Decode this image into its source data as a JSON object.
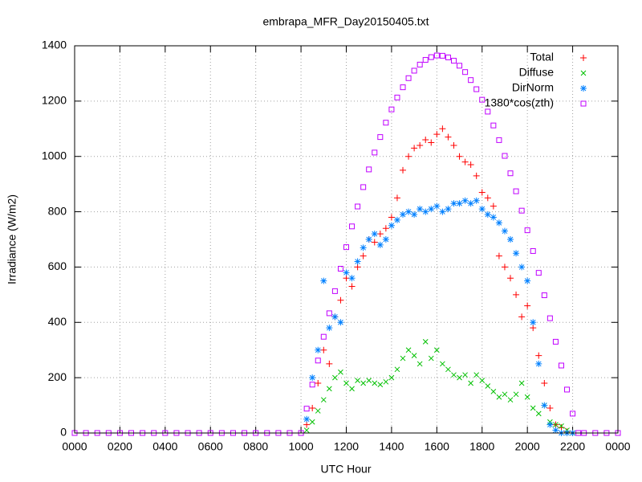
{
  "chart_data": {
    "type": "scatter",
    "title": "embrapa_MFR_Day20150405.txt",
    "x_label": "UTC Hour",
    "y_label": "Irradiance (W/m2)",
    "xlim": [
      0,
      24
    ],
    "ylim": [
      0,
      1400
    ],
    "xticks": [
      {
        "value": 0,
        "label": "0000"
      },
      {
        "value": 2,
        "label": "0200"
      },
      {
        "value": 4,
        "label": "0400"
      },
      {
        "value": 6,
        "label": "0600"
      },
      {
        "value": 8,
        "label": "0800"
      },
      {
        "value": 10,
        "label": "1000"
      },
      {
        "value": 12,
        "label": "1200"
      },
      {
        "value": 14,
        "label": "1400"
      },
      {
        "value": 16,
        "label": "1600"
      },
      {
        "value": 18,
        "label": "1800"
      },
      {
        "value": 20,
        "label": "2000"
      },
      {
        "value": 22,
        "label": "2200"
      },
      {
        "value": 24,
        "label": "0000"
      }
    ],
    "yticks": [
      0,
      200,
      400,
      600,
      800,
      1000,
      1200,
      1400
    ],
    "grid": true,
    "legend": "top-right",
    "series": [
      {
        "name": "Total",
        "color": "#ff0000",
        "marker": "plus",
        "x": [
          10.25,
          10.5,
          10.75,
          11,
          11.25,
          11.5,
          11.75,
          12,
          12.25,
          12.5,
          12.75,
          13,
          13.25,
          13.5,
          13.75,
          14,
          14.25,
          14.5,
          14.75,
          15,
          15.25,
          15.5,
          15.75,
          16,
          16.25,
          16.5,
          16.75,
          17,
          17.25,
          17.5,
          17.75,
          18,
          18.25,
          18.5,
          18.75,
          19,
          19.25,
          19.5,
          19.75,
          20,
          20.25,
          20.5,
          20.75,
          21,
          21.25,
          21.5,
          21.75,
          22
        ],
        "values": [
          30,
          90,
          180,
          300,
          250,
          420,
          480,
          560,
          530,
          600,
          640,
          700,
          690,
          720,
          740,
          780,
          850,
          950,
          1000,
          1030,
          1040,
          1060,
          1050,
          1080,
          1100,
          1070,
          1040,
          1000,
          980,
          970,
          930,
          870,
          850,
          820,
          640,
          600,
          560,
          500,
          420,
          460,
          380,
          280,
          180,
          90,
          30,
          20,
          5,
          0
        ]
      },
      {
        "name": "Diffuse",
        "color": "#00c000",
        "marker": "cross",
        "x": [
          10.25,
          10.5,
          10.75,
          11,
          11.25,
          11.5,
          11.75,
          12,
          12.25,
          12.5,
          12.75,
          13,
          13.25,
          13.5,
          13.75,
          14,
          14.25,
          14.5,
          14.75,
          15,
          15.25,
          15.5,
          15.75,
          16,
          16.25,
          16.5,
          16.75,
          17,
          17.25,
          17.5,
          17.75,
          18,
          18.25,
          18.5,
          18.75,
          19,
          19.25,
          19.5,
          19.75,
          20,
          20.25,
          20.5,
          20.75,
          21,
          21.25,
          21.5,
          21.75,
          22
        ],
        "values": [
          10,
          40,
          80,
          120,
          160,
          200,
          220,
          180,
          160,
          190,
          180,
          190,
          180,
          175,
          185,
          200,
          230,
          270,
          300,
          280,
          250,
          330,
          270,
          300,
          250,
          230,
          210,
          200,
          210,
          180,
          210,
          190,
          170,
          150,
          130,
          140,
          120,
          140,
          180,
          130,
          90,
          70,
          100,
          40,
          30,
          25,
          10,
          0
        ]
      },
      {
        "name": "DirNorm",
        "color": "#0080ff",
        "marker": "star",
        "x": [
          10.25,
          10.5,
          10.75,
          11,
          11.25,
          11.5,
          11.75,
          12,
          12.25,
          12.5,
          12.75,
          13,
          13.25,
          13.5,
          13.75,
          14,
          14.25,
          14.5,
          14.75,
          15,
          15.25,
          15.5,
          15.75,
          16,
          16.25,
          16.5,
          16.75,
          17,
          17.25,
          17.5,
          17.75,
          18,
          18.25,
          18.5,
          18.75,
          19,
          19.25,
          19.5,
          19.75,
          20,
          20.25,
          20.5,
          20.75,
          21,
          21.25,
          21.5,
          21.75,
          22
        ],
        "values": [
          50,
          200,
          300,
          550,
          380,
          420,
          400,
          580,
          560,
          620,
          670,
          700,
          720,
          680,
          700,
          750,
          770,
          790,
          800,
          790,
          810,
          800,
          810,
          820,
          800,
          810,
          830,
          830,
          840,
          830,
          840,
          810,
          790,
          780,
          760,
          730,
          700,
          650,
          600,
          550,
          400,
          250,
          100,
          30,
          10,
          0,
          0,
          0
        ]
      },
      {
        "name": "1380*cos(zth)",
        "color": "#c000ff",
        "marker": "square",
        "x": [
          0,
          0.5,
          1,
          1.5,
          2,
          2.5,
          3,
          3.5,
          4,
          4.5,
          5,
          5.5,
          6,
          6.5,
          7,
          7.5,
          8,
          8.5,
          9,
          9.5,
          10,
          10.25,
          10.5,
          10.75,
          11,
          11.25,
          11.5,
          11.75,
          12,
          12.25,
          12.5,
          12.75,
          13,
          13.25,
          13.5,
          13.75,
          14,
          14.25,
          14.5,
          14.75,
          15,
          15.25,
          15.5,
          15.75,
          16,
          16.25,
          16.5,
          16.75,
          17,
          17.25,
          17.5,
          17.75,
          18,
          18.25,
          18.5,
          18.75,
          19,
          19.25,
          19.5,
          19.75,
          20,
          20.25,
          20.5,
          20.75,
          21,
          21.25,
          21.5,
          21.75,
          22,
          22.25,
          22.5,
          23,
          23.5,
          24
        ],
        "values": [
          0,
          0,
          0,
          0,
          0,
          0,
          0,
          0,
          0,
          0,
          0,
          0,
          0,
          0,
          0,
          0,
          0,
          0,
          0,
          0,
          0,
          88,
          175,
          262,
          348,
          433,
          513,
          594,
          672,
          747,
          819,
          889,
          953,
          1014,
          1070,
          1122,
          1170,
          1213,
          1250,
          1283,
          1310,
          1332,
          1349,
          1359,
          1365,
          1364,
          1358,
          1346,
          1328,
          1305,
          1276,
          1243,
          1205,
          1162,
          1112,
          1059,
          1002,
          939,
          874,
          804,
          733,
          658,
          579,
          498,
          415,
          330,
          244,
          157,
          70,
          0,
          0,
          0,
          0,
          0
        ]
      }
    ]
  }
}
